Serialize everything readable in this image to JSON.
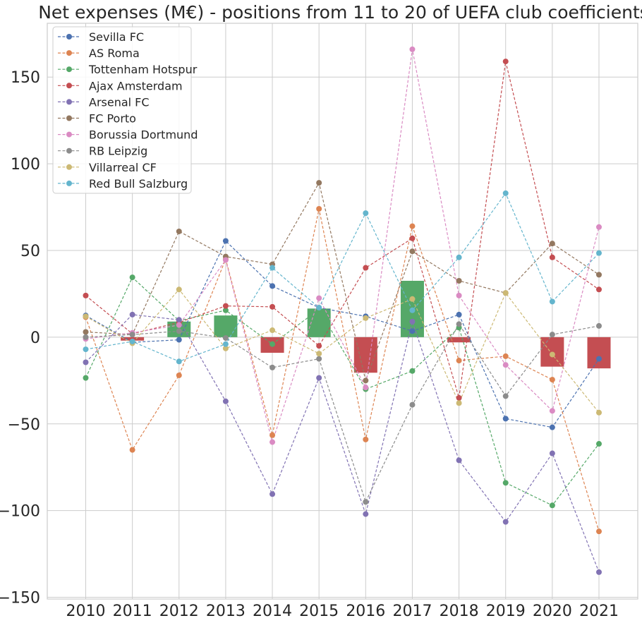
{
  "chart_data": {
    "type": "line",
    "title": "Net expenses (M€) - positions from 11 to 20 of UEFA club coefficients",
    "xlabel": "",
    "ylabel": "",
    "categories": [
      "2010",
      "2011",
      "2012",
      "2013",
      "2014",
      "2015",
      "2016",
      "2017",
      "2018",
      "2019",
      "2020",
      "2021"
    ],
    "ylim": [
      -151,
      181
    ],
    "yticks": [
      -150,
      -100,
      -50,
      0,
      50,
      100,
      150
    ],
    "grid": true,
    "legend_position": "top-left",
    "series": [
      {
        "name": "Sevilla FC",
        "color": "#4c72b0",
        "values": [
          12.5,
          -3,
          -1.5,
          55.5,
          29.5,
          17,
          12,
          3.5,
          13,
          -47,
          -52,
          -12.5
        ]
      },
      {
        "name": "AS Roma",
        "color": "#dd8452",
        "values": [
          11.5,
          -65,
          -22,
          45,
          -56.5,
          74,
          -59,
          64,
          -13.5,
          -11,
          -24.5,
          -112
        ]
      },
      {
        "name": "Tottenham Hotspur",
        "color": "#55a868",
        "values": [
          -23.5,
          34.5,
          9.5,
          15.5,
          -4,
          16,
          -30,
          -19.5,
          5.5,
          -84,
          -97,
          -61.5
        ]
      },
      {
        "name": "Ajax Amsterdam",
        "color": "#c44e52",
        "values": [
          24,
          2,
          8.5,
          18,
          17.5,
          -5,
          40,
          57,
          -35,
          159,
          46,
          27.5
        ]
      },
      {
        "name": "Arsenal FC",
        "color": "#8172b3",
        "values": [
          -14.5,
          13,
          10,
          -37,
          -90.5,
          -23.5,
          -102,
          9,
          -71,
          -106.5,
          -67,
          -135.5
        ]
      },
      {
        "name": "FC Porto",
        "color": "#937860",
        "values": [
          3,
          1.5,
          61,
          46.5,
          42,
          89,
          -25,
          49.5,
          32.5,
          25.5,
          54,
          36
        ]
      },
      {
        "name": "Borussia Dortmund",
        "color": "#da8bc3",
        "values": [
          -1,
          2.5,
          7,
          44.5,
          -60.5,
          22.5,
          -29,
          166,
          24,
          -16,
          -42.5,
          63.5
        ]
      },
      {
        "name": "RB Leipzig",
        "color": "#8c8c8c",
        "values": [
          0,
          1.5,
          3.5,
          -0.5,
          -17.5,
          -12.5,
          -95,
          -39,
          7.5,
          -34,
          1.5,
          6.5
        ]
      },
      {
        "name": "Villarreal CF",
        "color": "#ccb974",
        "values": [
          12,
          -3.5,
          27.5,
          -6.5,
          4,
          -9.5,
          11,
          22,
          -38,
          25.5,
          -10,
          -43.5
        ]
      },
      {
        "name": "Red Bull Salzburg",
        "color": "#64b5cd",
        "values": [
          -7,
          -2.5,
          -14,
          -4,
          40,
          17,
          71.5,
          15.5,
          46,
          83,
          20.5,
          48.5
        ]
      }
    ],
    "bars": {
      "description": "",
      "positive_color": "#55a868",
      "negative_color": "#c44e52",
      "values": [
        0,
        -2,
        9,
        12.5,
        -9,
        16.5,
        -20.5,
        32.5,
        -3,
        0,
        -17,
        -18
      ]
    }
  }
}
